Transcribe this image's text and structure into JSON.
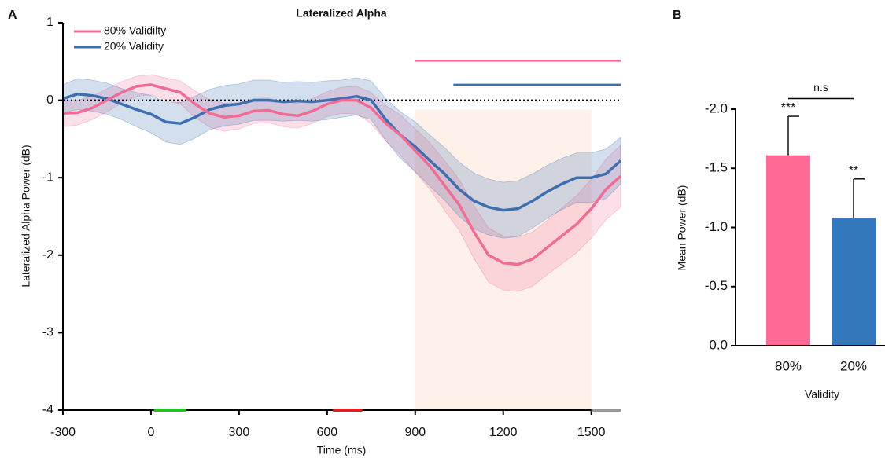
{
  "chart_data": [
    {
      "type": "line",
      "panel": "A",
      "title": "Lateralized Alpha",
      "x_label": "Time (ms)",
      "y_label": "Lateralized Alpha Power (dB)",
      "x": [
        -300,
        -250,
        -200,
        -150,
        -100,
        -50,
        0,
        50,
        100,
        150,
        200,
        250,
        300,
        350,
        400,
        450,
        500,
        550,
        600,
        650,
        700,
        750,
        800,
        850,
        900,
        950,
        1000,
        1050,
        1100,
        1150,
        1200,
        1250,
        1300,
        1350,
        1400,
        1450,
        1500,
        1550,
        1600
      ],
      "series": [
        {
          "name": "80% Validilty",
          "color": "#f06c94",
          "values": [
            -0.17,
            -0.16,
            -0.1,
            0.0,
            0.1,
            0.18,
            0.2,
            0.15,
            0.1,
            -0.05,
            -0.17,
            -0.22,
            -0.2,
            -0.14,
            -0.13,
            -0.18,
            -0.2,
            -0.14,
            -0.05,
            0.0,
            0.0,
            -0.1,
            -0.3,
            -0.45,
            -0.65,
            -0.85,
            -1.1,
            -1.35,
            -1.7,
            -2.0,
            -2.1,
            -2.12,
            -2.05,
            -1.9,
            -1.75,
            -1.6,
            -1.4,
            -1.15,
            -0.98
          ],
          "error": [
            0.17,
            0.16,
            0.15,
            0.15,
            0.14,
            0.13,
            0.13,
            0.14,
            0.15,
            0.17,
            0.18,
            0.18,
            0.17,
            0.16,
            0.16,
            0.16,
            0.16,
            0.16,
            0.16,
            0.17,
            0.18,
            0.2,
            0.23,
            0.26,
            0.28,
            0.3,
            0.32,
            0.33,
            0.34,
            0.35,
            0.35,
            0.35,
            0.35,
            0.35,
            0.36,
            0.37,
            0.38,
            0.39,
            0.4
          ]
        },
        {
          "name": "20% Validity",
          "color": "#3d6fb0",
          "values": [
            0.02,
            0.08,
            0.06,
            0.02,
            -0.05,
            -0.12,
            -0.18,
            -0.28,
            -0.3,
            -0.22,
            -0.12,
            -0.07,
            -0.05,
            0.0,
            0.0,
            -0.02,
            -0.01,
            -0.02,
            0.0,
            0.02,
            0.05,
            0.0,
            -0.25,
            -0.45,
            -0.6,
            -0.78,
            -0.95,
            -1.15,
            -1.3,
            -1.38,
            -1.42,
            -1.4,
            -1.3,
            -1.18,
            -1.08,
            -1.0,
            -1.0,
            -0.95,
            -0.78
          ],
          "error": [
            0.18,
            0.2,
            0.2,
            0.2,
            0.2,
            0.22,
            0.24,
            0.26,
            0.27,
            0.27,
            0.26,
            0.26,
            0.26,
            0.26,
            0.26,
            0.25,
            0.25,
            0.25,
            0.25,
            0.24,
            0.24,
            0.25,
            0.27,
            0.3,
            0.32,
            0.33,
            0.34,
            0.35,
            0.36,
            0.36,
            0.36,
            0.36,
            0.35,
            0.34,
            0.33,
            0.32,
            0.32,
            0.32,
            0.3
          ]
        }
      ],
      "xlim": [
        -300,
        1600
      ],
      "xticks": [
        -300,
        0,
        300,
        600,
        900,
        1200,
        1500
      ],
      "ylim": [
        -4,
        1
      ],
      "yticks": [
        1,
        0,
        -1,
        -2,
        -3,
        -4
      ],
      "reference_line": 0,
      "highlight": {
        "x": [
          900,
          1500
        ],
        "color": "#fdeee3"
      },
      "sig_bars": [
        {
          "color": "#f06c94",
          "x": [
            900,
            1600
          ],
          "y": 0.51
        },
        {
          "color": "#3d6fb0",
          "x": [
            1030,
            1600
          ],
          "y": 0.2
        }
      ],
      "x_markers": [
        {
          "color": "#22c322",
          "x": [
            10,
            120
          ]
        },
        {
          "color": "#e0201b",
          "x": [
            620,
            720
          ]
        },
        {
          "color": "#999999",
          "x": [
            1500,
            1600
          ]
        }
      ],
      "legend": "upper left"
    },
    {
      "type": "bar",
      "panel": "B",
      "x_label": "Validity",
      "y_label": "Mean Power (dB)",
      "categories": [
        "80%",
        "20%"
      ],
      "values": [
        -1.61,
        -1.08
      ],
      "error": [
        0.33,
        0.33
      ],
      "colors": [
        "#ff6b95",
        "#3478bd"
      ],
      "annotations": [
        "***",
        "**"
      ],
      "comparison": {
        "label": "n.s",
        "between": [
          0,
          1
        ],
        "y": -2.09
      },
      "ylim": [
        0,
        -2.0
      ],
      "yticks": [
        {
          "value": 0,
          "label": "0.0"
        },
        {
          "value": -0.5,
          "label": "-0.5"
        },
        {
          "value": -1,
          "label": "-1.0"
        },
        {
          "value": -1.5,
          "label": "-1.5"
        },
        {
          "value": -2,
          "label": "-2.0"
        }
      ]
    }
  ]
}
